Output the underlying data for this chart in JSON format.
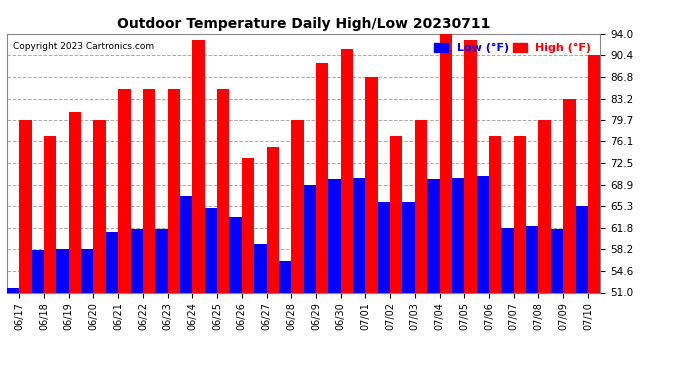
{
  "title": "Outdoor Temperature Daily High/Low 20230711",
  "copyright": "Copyright 2023 Cartronics.com",
  "legend_low": "Low (°F)",
  "legend_high": "High (°F)",
  "low_color": "#0000ff",
  "high_color": "#ff0000",
  "background_color": "#ffffff",
  "grid_color": "#aaaaaa",
  "ylim": [
    51.0,
    94.0
  ],
  "yticks": [
    51.0,
    54.6,
    58.2,
    61.8,
    65.3,
    68.9,
    72.5,
    76.1,
    79.7,
    83.2,
    86.8,
    90.4,
    94.0
  ],
  "dates": [
    "06/17",
    "06/18",
    "06/19",
    "06/20",
    "06/21",
    "06/22",
    "06/23",
    "06/24",
    "06/25",
    "06/26",
    "06/27",
    "06/28",
    "06/29",
    "06/30",
    "07/01",
    "07/02",
    "07/03",
    "07/04",
    "07/05",
    "07/06",
    "07/07",
    "07/08",
    "07/09",
    "07/10"
  ],
  "highs": [
    79.7,
    77.0,
    81.0,
    79.7,
    84.9,
    84.9,
    84.9,
    93.0,
    84.9,
    73.4,
    75.2,
    79.7,
    89.1,
    91.4,
    86.8,
    77.0,
    79.7,
    93.9,
    93.0,
    77.0,
    77.0,
    79.7,
    83.2,
    90.4
  ],
  "lows": [
    51.8,
    58.0,
    58.2,
    58.2,
    61.0,
    61.5,
    61.5,
    67.1,
    65.1,
    63.5,
    59.0,
    56.3,
    68.9,
    69.8,
    70.0,
    66.0,
    66.0,
    69.8,
    70.0,
    70.3,
    61.8,
    62.0,
    61.5,
    65.3
  ]
}
